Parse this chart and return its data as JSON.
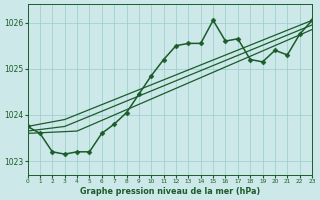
{
  "bg_color": "#cce8e8",
  "grid_color": "#99cccc",
  "line_color": "#1a5c2a",
  "marker_color": "#1a5c2a",
  "title": "Graphe pression niveau de la mer (hPa)",
  "xlim": [
    0,
    23
  ],
  "ylim": [
    1022.7,
    1026.4
  ],
  "yticks": [
    1023,
    1024,
    1025,
    1026
  ],
  "xticks": [
    0,
    1,
    2,
    3,
    4,
    5,
    6,
    7,
    8,
    9,
    10,
    11,
    12,
    13,
    14,
    15,
    16,
    17,
    18,
    19,
    20,
    21,
    22,
    23
  ],
  "series": [
    {
      "x": [
        0,
        1,
        2,
        3,
        4,
        5,
        6,
        7,
        8,
        9,
        10,
        11,
        12,
        13,
        14,
        15,
        16,
        17,
        18,
        19,
        20,
        21,
        22,
        23
      ],
      "y": [
        1023.75,
        1023.6,
        1023.2,
        1023.15,
        1023.2,
        1023.2,
        1023.6,
        1023.8,
        1024.05,
        1024.45,
        1024.85,
        1025.2,
        1025.5,
        1025.55,
        1025.55,
        1026.05,
        1025.6,
        1025.65,
        1025.2,
        1025.15,
        1025.4,
        1025.3,
        1025.75,
        1026.05
      ],
      "marker": "D",
      "markersize": 2.5,
      "linewidth": 1.1
    },
    {
      "x": [
        0,
        3,
        23
      ],
      "y": [
        1023.75,
        1023.9,
        1026.05
      ],
      "marker": "none",
      "markersize": 0,
      "linewidth": 0.9
    },
    {
      "x": [
        0,
        3,
        23
      ],
      "y": [
        1023.65,
        1023.75,
        1025.95
      ],
      "marker": "none",
      "markersize": 0,
      "linewidth": 0.9
    },
    {
      "x": [
        0,
        4,
        23
      ],
      "y": [
        1023.6,
        1023.65,
        1025.85
      ],
      "marker": "none",
      "markersize": 0,
      "linewidth": 0.9
    }
  ]
}
